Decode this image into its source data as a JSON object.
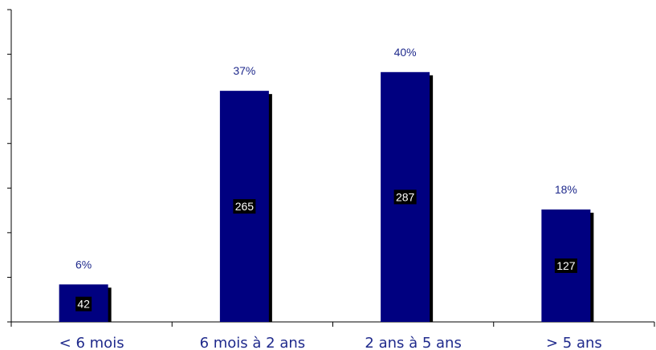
{
  "chart_data": {
    "type": "bar",
    "categories": [
      "< 6 mois",
      "6 mois à 2 ans",
      "2 ans à 5 ans",
      "> 5 ans"
    ],
    "values": [
      6,
      37,
      40,
      18
    ],
    "percent_labels": [
      "6%",
      "37%",
      "40%",
      "18%"
    ],
    "count_labels": [
      "42",
      "265",
      "287",
      "127"
    ],
    "ylim": [
      0,
      50
    ],
    "y_tick_labels_shown": false,
    "grid": false,
    "bar_color": "#000080",
    "shadow_color": "#000000",
    "label_color": "#1f2a8c",
    "count_box_color": "#000000"
  }
}
